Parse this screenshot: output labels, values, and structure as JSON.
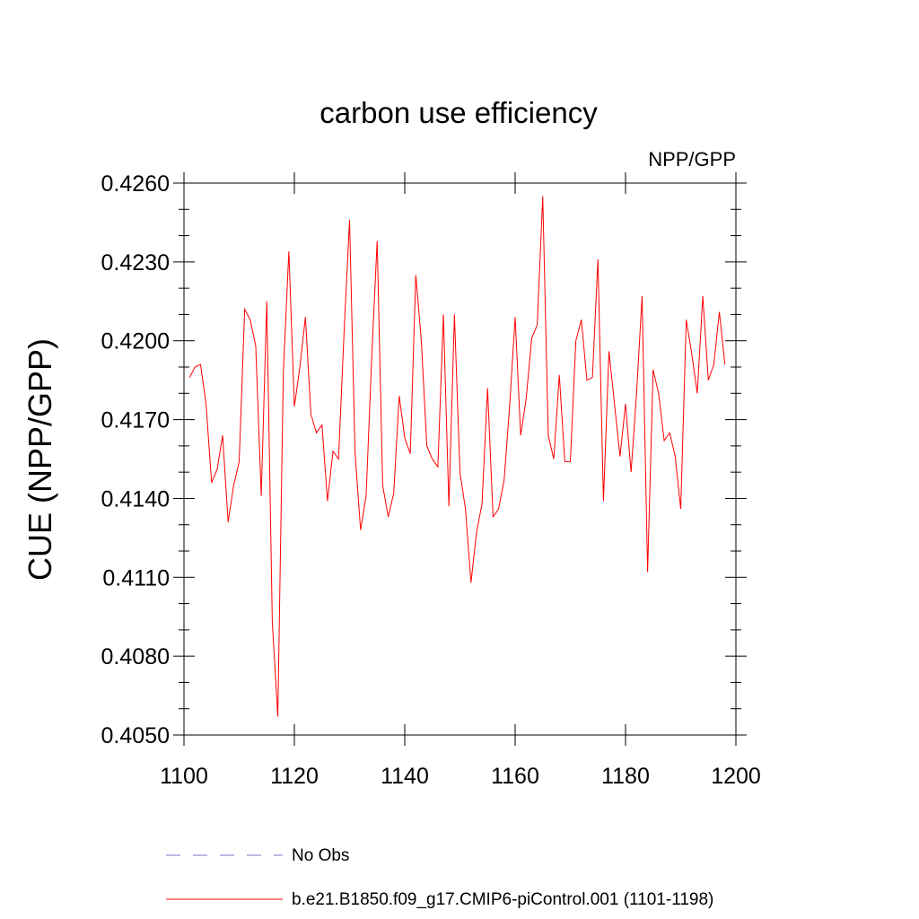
{
  "chart_data": {
    "type": "line",
    "title": "carbon use efficiency",
    "subtitle": "NPP/GPP",
    "xlabel": "",
    "ylabel": "CUE  (NPP/GPP)",
    "xlim": [
      1100,
      1200
    ],
    "ylim": [
      0.405,
      0.426
    ],
    "xticks": [
      1100,
      1120,
      1140,
      1160,
      1180,
      1200
    ],
    "xtick_labels": [
      "1100",
      "1120",
      "1140",
      "1160",
      "1180",
      "1200"
    ],
    "yticks": [
      0.405,
      0.408,
      0.411,
      0.414,
      0.417,
      0.42,
      0.423,
      0.426
    ],
    "ytick_labels": [
      "0.4050",
      "0.4080",
      "0.4110",
      "0.4140",
      "0.4170",
      "0.4200",
      "0.4230",
      "0.4260"
    ],
    "grid": false,
    "legend_position": "bottom",
    "series": [
      {
        "name": "No Obs",
        "color": "#7b70c8",
        "dash": "dashed",
        "x": [],
        "values": []
      },
      {
        "name": "b.e21.B1850.f09_g17.CMIP6-piControl.001 (1101-1198)",
        "color": "#ff0000",
        "dash": "solid",
        "x": [
          1101,
          1102,
          1103,
          1104,
          1105,
          1106,
          1107,
          1108,
          1109,
          1110,
          1111,
          1112,
          1113,
          1114,
          1115,
          1116,
          1117,
          1118,
          1119,
          1120,
          1121,
          1122,
          1123,
          1124,
          1125,
          1126,
          1127,
          1128,
          1129,
          1130,
          1131,
          1132,
          1133,
          1134,
          1135,
          1136,
          1137,
          1138,
          1139,
          1140,
          1141,
          1142,
          1143,
          1144,
          1145,
          1146,
          1147,
          1148,
          1149,
          1150,
          1151,
          1152,
          1153,
          1154,
          1155,
          1156,
          1157,
          1158,
          1159,
          1160,
          1161,
          1162,
          1163,
          1164,
          1165,
          1166,
          1167,
          1168,
          1169,
          1170,
          1171,
          1172,
          1173,
          1174,
          1175,
          1176,
          1177,
          1178,
          1179,
          1180,
          1181,
          1182,
          1183,
          1184,
          1185,
          1186,
          1187,
          1188,
          1189,
          1190,
          1191,
          1192,
          1193,
          1194,
          1195,
          1196,
          1197,
          1198
        ],
        "values": [
          0.4186,
          0.419,
          0.4191,
          0.4176,
          0.4146,
          0.4151,
          0.4164,
          0.4131,
          0.4145,
          0.4154,
          0.4212,
          0.4208,
          0.4198,
          0.4141,
          0.4215,
          0.4093,
          0.4057,
          0.4188,
          0.4234,
          0.4175,
          0.419,
          0.4209,
          0.4172,
          0.4165,
          0.4168,
          0.4139,
          0.4158,
          0.4155,
          0.4203,
          0.4246,
          0.4157,
          0.4128,
          0.4141,
          0.4193,
          0.4238,
          0.4145,
          0.4133,
          0.4142,
          0.4179,
          0.4163,
          0.4157,
          0.4225,
          0.42,
          0.416,
          0.4155,
          0.4152,
          0.421,
          0.4137,
          0.421,
          0.415,
          0.4136,
          0.4108,
          0.4127,
          0.4138,
          0.4182,
          0.4133,
          0.4136,
          0.4147,
          0.4175,
          0.4209,
          0.4164,
          0.4178,
          0.4201,
          0.4206,
          0.4255,
          0.4164,
          0.4155,
          0.4187,
          0.4154,
          0.4154,
          0.42,
          0.4208,
          0.4185,
          0.4186,
          0.4231,
          0.4139,
          0.4196,
          0.4176,
          0.4156,
          0.4176,
          0.415,
          0.418,
          0.4217,
          0.4112,
          0.4189,
          0.418,
          0.4162,
          0.4165,
          0.4156,
          0.4136,
          0.4208,
          0.4195,
          0.418,
          0.4217,
          0.4185,
          0.4191,
          0.4211,
          0.4191
        ]
      }
    ]
  }
}
